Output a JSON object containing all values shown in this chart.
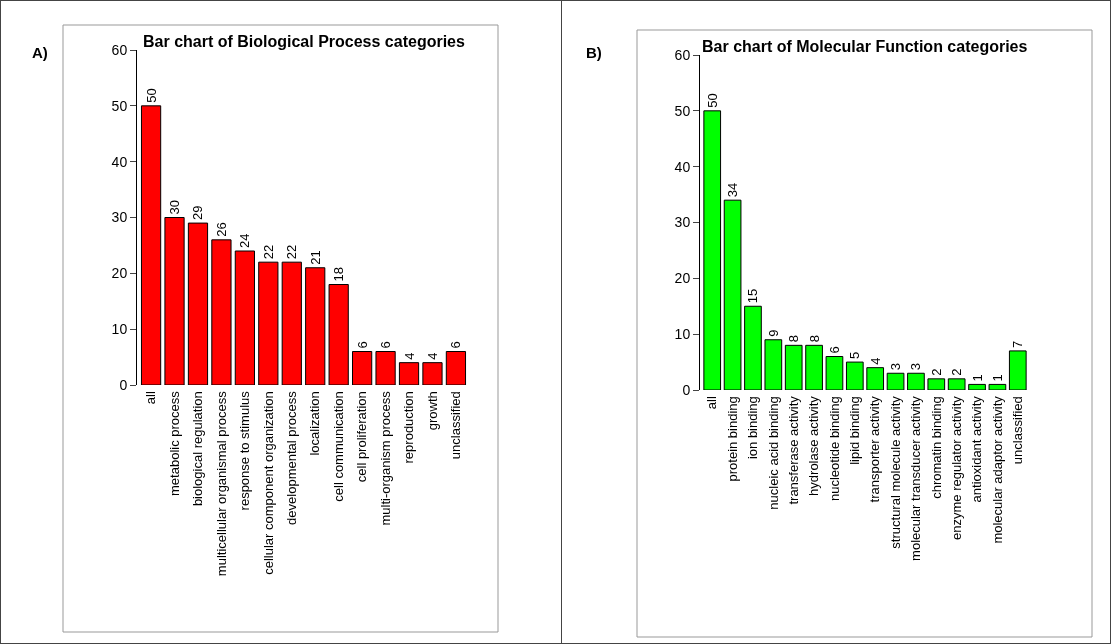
{
  "chart_data": [
    {
      "type": "bar",
      "title": "Bar chart of Biological Process categories",
      "annotations": [
        "A)"
      ],
      "categories": [
        "all",
        "metabolic process",
        "biological regulation",
        "multicellular organismal process",
        "response to stimulus",
        "cellular component organization",
        "developmental process",
        "localization",
        "cell communication",
        "cell proliferation",
        "multi-organism process",
        "reproduction",
        "growth",
        "unclassified"
      ],
      "values": [
        50,
        30,
        29,
        26,
        24,
        22,
        22,
        21,
        18,
        6,
        6,
        4,
        4,
        6
      ],
      "color": "#ff0000",
      "ylim": [
        0,
        60
      ],
      "yticks": [
        0,
        10,
        20,
        30,
        40,
        50,
        60
      ],
      "grid": false,
      "data_labels": true
    },
    {
      "type": "bar",
      "title": "Bar chart of Molecular Function categories",
      "annotations": [
        "B)"
      ],
      "categories": [
        "all",
        "protein binding",
        "ion binding",
        "nucleic acid binding",
        "transferase activity",
        "hydrolase activity",
        "nucleotide binding",
        "lipid binding",
        "transporter activity",
        "structural molecule activity",
        "molecular transducer activity",
        "chromatin binding",
        "enzyme regulator activity",
        "antioxidant activity",
        "molecular adaptor activity",
        "unclassified"
      ],
      "values": [
        50,
        34,
        15,
        9,
        8,
        8,
        6,
        5,
        4,
        3,
        3,
        2,
        2,
        1,
        1,
        7
      ],
      "color": "#00ff00",
      "ylim": [
        0,
        60
      ],
      "yticks": [
        0,
        10,
        20,
        30,
        40,
        50,
        60
      ],
      "grid": false,
      "data_labels": true
    }
  ]
}
